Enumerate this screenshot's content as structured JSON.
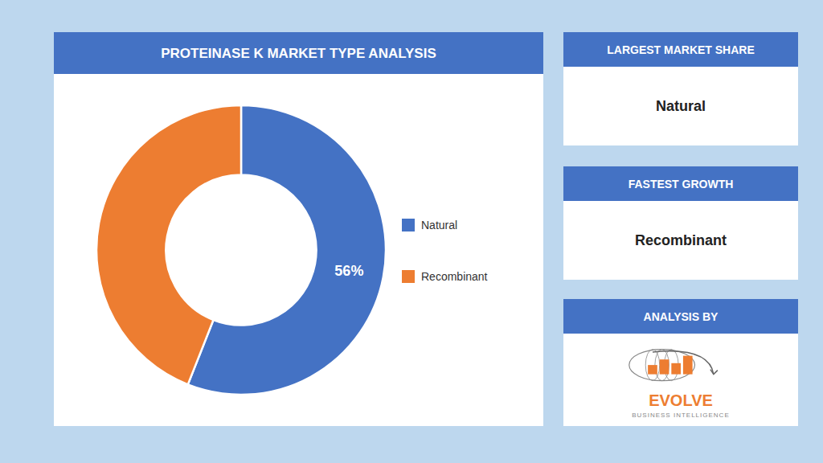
{
  "chart_data": {
    "type": "pie",
    "title": "PROTEINASE K MARKET TYPE ANALYSIS",
    "categories": [
      "Natural",
      "Recombinant"
    ],
    "values": [
      56,
      44
    ],
    "colors": [
      "#4472C4",
      "#ED7D31"
    ],
    "data_labels": true,
    "value_labels": [
      "56%",
      null
    ],
    "legend": "right",
    "annotations": [
      {
        "heading": "LARGEST MARKET SHARE",
        "text": "Natural"
      },
      {
        "heading": "FASTEST GROWTH",
        "text": "Recombinant"
      },
      {
        "heading": "ANALYSIS BY",
        "text": "EVOLVE",
        "subtext": "BUSINESS INTELLIGENCE"
      }
    ]
  }
}
